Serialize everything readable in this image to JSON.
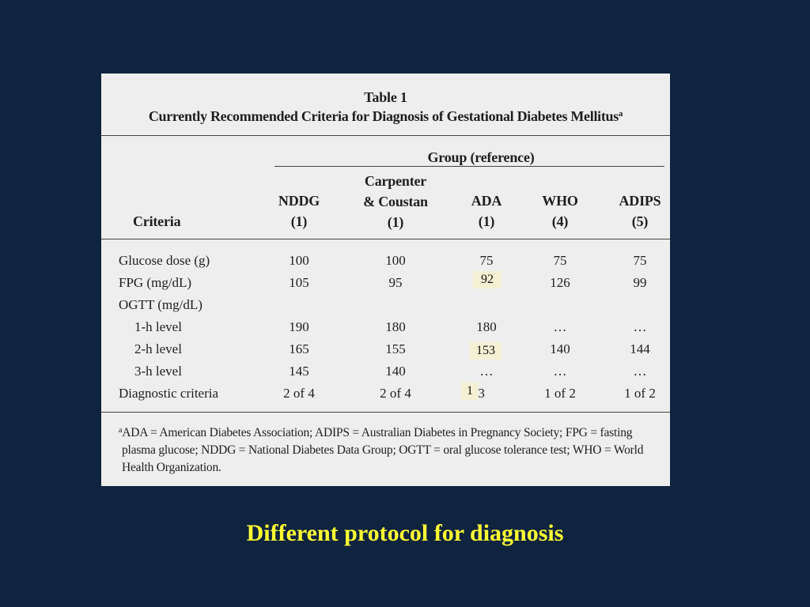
{
  "table": {
    "title": "Table 1",
    "subtitle": "Currently Recommended Criteria for Diagnosis of Gestational Diabetes Mellitus",
    "subtitle_marker": "a",
    "group_header": "Group (reference)",
    "criteria_header": "Criteria",
    "columns": [
      {
        "name": "NDDG",
        "ref": "(1)"
      },
      {
        "name": "Carpenter",
        "name2": "& Coustan",
        "ref": "(1)"
      },
      {
        "name": "ADA",
        "ref": "(1)"
      },
      {
        "name": "WHO",
        "ref": "(4)"
      },
      {
        "name": "ADIPS",
        "ref": "(5)"
      }
    ],
    "rows": [
      {
        "label": "Glucose dose (g)",
        "values": [
          "100",
          "100",
          "75",
          "75",
          "75"
        ]
      },
      {
        "label": "FPG (mg/dL)",
        "values": [
          "105",
          "95",
          "",
          "126",
          "99"
        ]
      },
      {
        "label": "OGTT (mg/dL)",
        "values": [
          "",
          "",
          "",
          "",
          ""
        ]
      },
      {
        "label": "1-h level",
        "values": [
          "190",
          "180",
          "180",
          "…",
          "…"
        ]
      },
      {
        "label": "2-h level",
        "values": [
          "165",
          "155",
          "",
          "140",
          "144"
        ]
      },
      {
        "label": "3-h level",
        "values": [
          "145",
          "140",
          "…",
          "…",
          "…"
        ]
      },
      {
        "label": "Diagnostic criteria",
        "values": [
          "2 of 4",
          "2 of 4",
          "of 3",
          "1 of 2",
          "1 of 2"
        ]
      }
    ],
    "overlays": {
      "ada_fpg": "92",
      "ada_2h": "153",
      "ada_diag": "1"
    },
    "footnote_marker": "a",
    "footnote_line1": "ADA = American Diabetes Association; ADIPS = Australian Diabetes in Pregnancy Society; FPG = fasting",
    "footnote_line2": "plasma glucose; NDDG = National Diabetes Data Group; OGTT = oral glucose tolerance test; WHO = World",
    "footnote_line3": "Health Organization."
  },
  "caption": "Different protocol for diagnosis"
}
